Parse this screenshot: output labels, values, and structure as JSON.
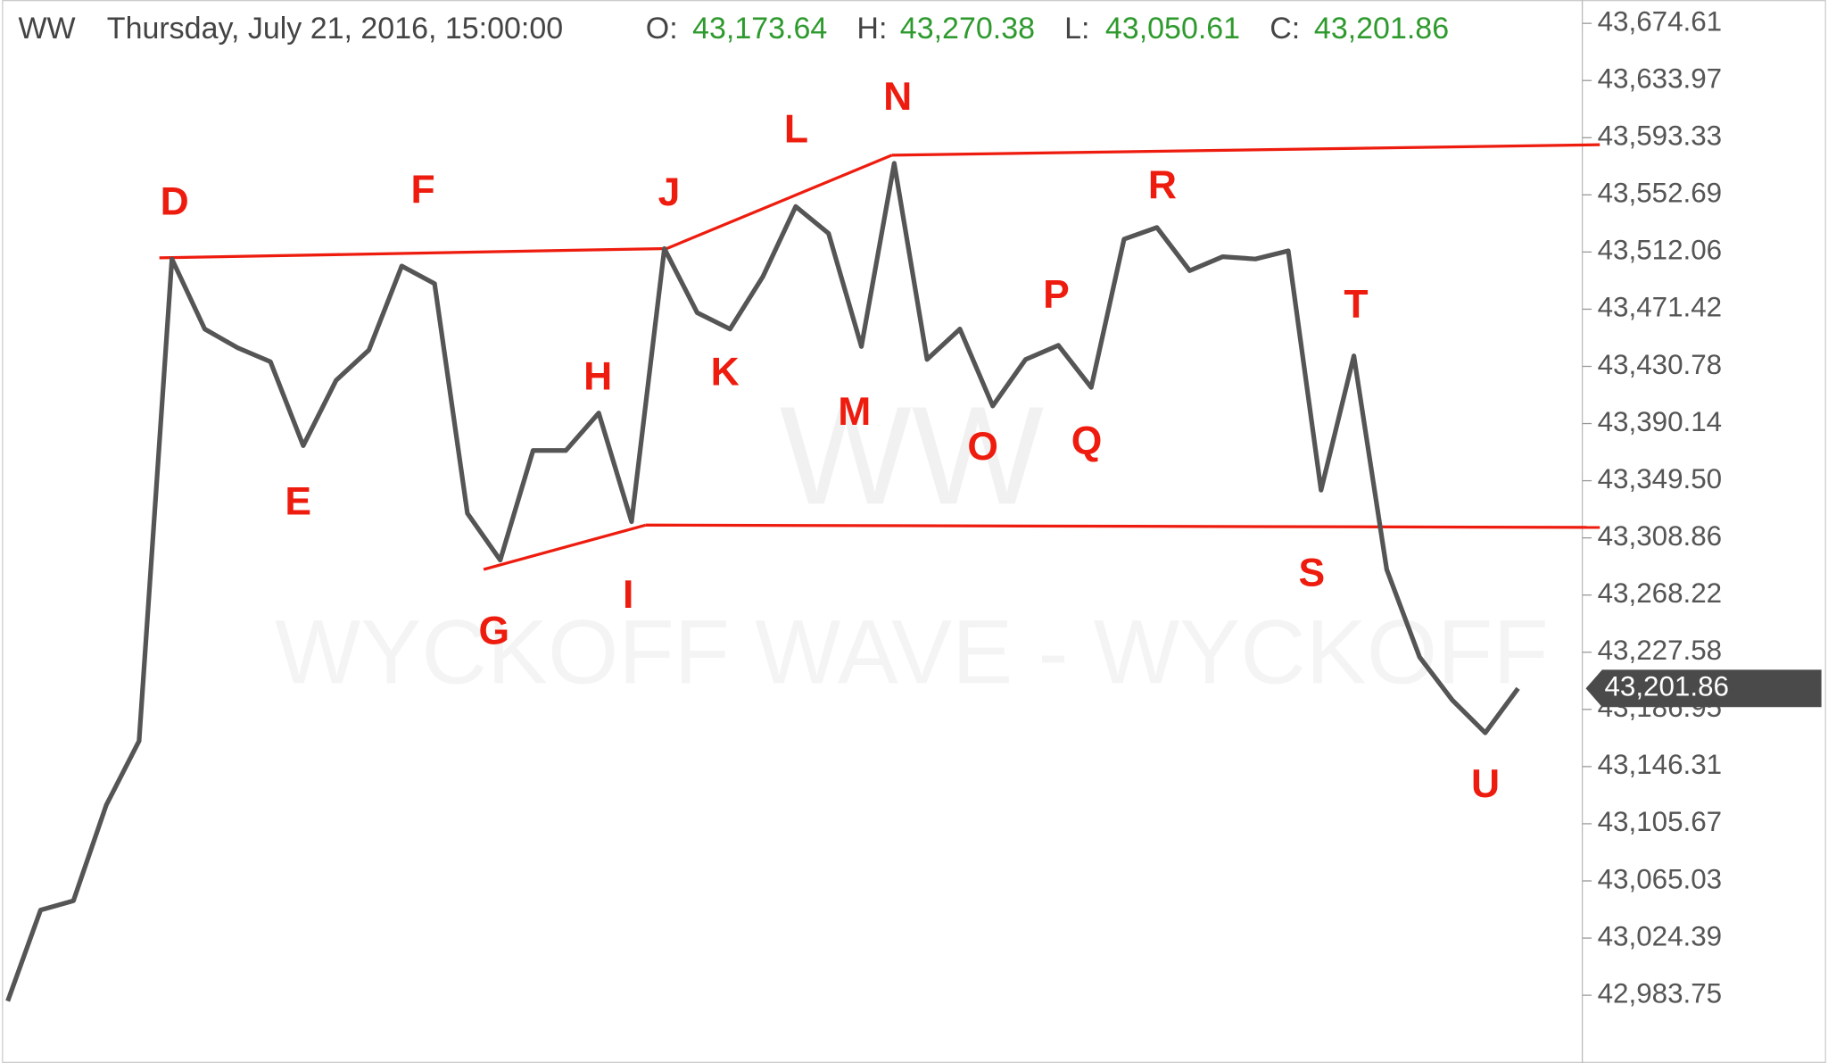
{
  "chart_data": {
    "type": "line",
    "header": {
      "symbol": "WW",
      "datetime": "Thursday, July 21, 2016, 15:00:00",
      "fields": [
        {
          "label": "O:",
          "value": "43,173.64"
        },
        {
          "label": "H:",
          "value": "43,270.38"
        },
        {
          "label": "L:",
          "value": "43,050.61"
        },
        {
          "label": "C:",
          "value": "43,201.86"
        }
      ]
    },
    "watermark": [
      "WW",
      "WYCKOFF WAVE - WYCKOFF"
    ],
    "series": [
      {
        "name": "WW",
        "color": "#555555",
        "values": [
          42979.6,
          43044.3,
          43050.9,
          43118.9,
          43164.5,
          43507.1,
          43457.3,
          43444.0,
          43434.1,
          43374.4,
          43420.8,
          43442.4,
          43502.1,
          43489.6,
          43326.3,
          43293.1,
          43371.0,
          43371.0,
          43397.6,
          43320.4,
          43514.5,
          43468.9,
          43457.3,
          43494.6,
          43544.4,
          43525.3,
          43444.9,
          43575.1,
          43435.7,
          43457.3,
          43402.6,
          43435.7,
          43445.7,
          43415.8,
          43521.2,
          43529.5,
          43498.8,
          43508.7,
          43507.1,
          43512.9,
          43342.8,
          43438.2,
          43286.4,
          43224.2,
          43193.5,
          43170.3,
          43201.86
        ]
      }
    ],
    "last_price": {
      "value": 43201.86,
      "label": "43,201.86"
    },
    "annotations": [
      "D",
      "E",
      "F",
      "G",
      "H",
      "I",
      "J",
      "K",
      "L",
      "M",
      "N",
      "O",
      "P",
      "Q",
      "R",
      "S",
      "T",
      "U"
    ],
    "annotation_color": "#ee1c0e",
    "ylim": [
      42935.6,
      43691.2
    ],
    "yticks": [
      {
        "value": 43674.61,
        "label": "43,674.61"
      },
      {
        "value": 43633.97,
        "label": "43,633.97"
      },
      {
        "value": 43593.33,
        "label": "43,593.33"
      },
      {
        "value": 43552.69,
        "label": "43,552.69"
      },
      {
        "value": 43512.06,
        "label": "43,512.06"
      },
      {
        "value": 43471.42,
        "label": "43,471.42"
      },
      {
        "value": 43430.78,
        "label": "43,430.78"
      },
      {
        "value": 43390.14,
        "label": "43,390.14"
      },
      {
        "value": 43349.5,
        "label": "43,349.50"
      },
      {
        "value": 43308.86,
        "label": "43,308.86"
      },
      {
        "value": 43268.22,
        "label": "43,268.22"
      },
      {
        "value": 43227.58,
        "label": "43,227.58"
      },
      {
        "value": 43186.95,
        "label": "43,186.95"
      },
      {
        "value": 43146.31,
        "label": "43,146.31"
      },
      {
        "value": 43105.67,
        "label": "43,105.67"
      },
      {
        "value": 43065.03,
        "label": "43,065.03"
      },
      {
        "value": 43024.39,
        "label": "43,024.39"
      },
      {
        "value": 42983.75,
        "label": "42,983.75"
      }
    ],
    "grid": false
  }
}
